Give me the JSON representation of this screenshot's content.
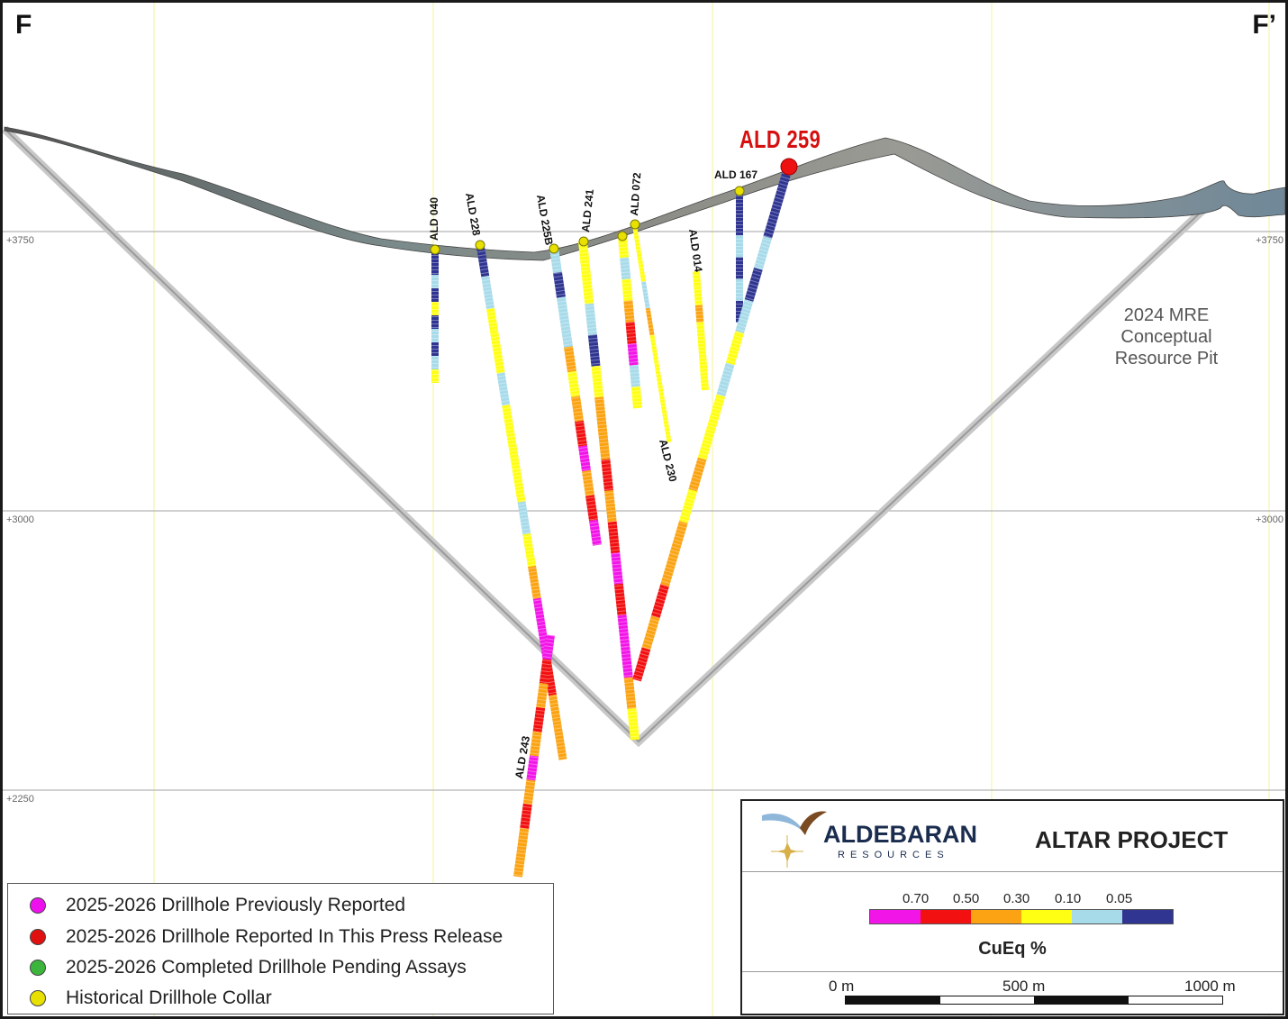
{
  "section": {
    "left_label": "F",
    "right_label": "F’"
  },
  "elevations": [
    "+3750",
    "+3000",
    "+2250"
  ],
  "drillholes": {
    "featured": "ALD 259",
    "labels": [
      "ALD 040",
      "ALD 228",
      "ALD 225B",
      "ALD 241",
      "ALD 072",
      "ALD 014",
      "ALD 167",
      "ALD 230",
      "ALD 243"
    ]
  },
  "pit": {
    "line1": "2024 MRE",
    "line2": "Conceptual",
    "line3": "Resource Pit"
  },
  "legend": {
    "items": [
      {
        "label": "2025-2026 Drillhole Previously Reported",
        "color": "#ee11ee"
      },
      {
        "label": "2025-2026 Drillhole Reported In This Press Release",
        "color": "#e01010"
      },
      {
        "label": "2025-2026 Completed Drillhole Pending Assays",
        "color": "#3cb53c"
      },
      {
        "label": "Historical Drillhole Collar",
        "color": "#e8e000"
      }
    ]
  },
  "info": {
    "company": "ALDEBARAN",
    "company_sub": "RESOURCES",
    "project": "ALTAR PROJECT",
    "scale_title": "CuEq %",
    "thresholds": [
      "0.70",
      "0.50",
      "0.30",
      "0.10",
      "0.05"
    ],
    "color_scale": [
      "#f215e8",
      "#f21010",
      "#fba312",
      "#ffff14",
      "#a8dbea",
      "#2f3591"
    ],
    "distance": [
      "0 m",
      "500 m",
      "1000 m"
    ]
  },
  "colors": {
    "featured": "#d50f0f",
    "collar": "#e8e000",
    "gridline_vertical": "#f3f39a",
    "gridline_horizontal": "#aaaaaa"
  }
}
